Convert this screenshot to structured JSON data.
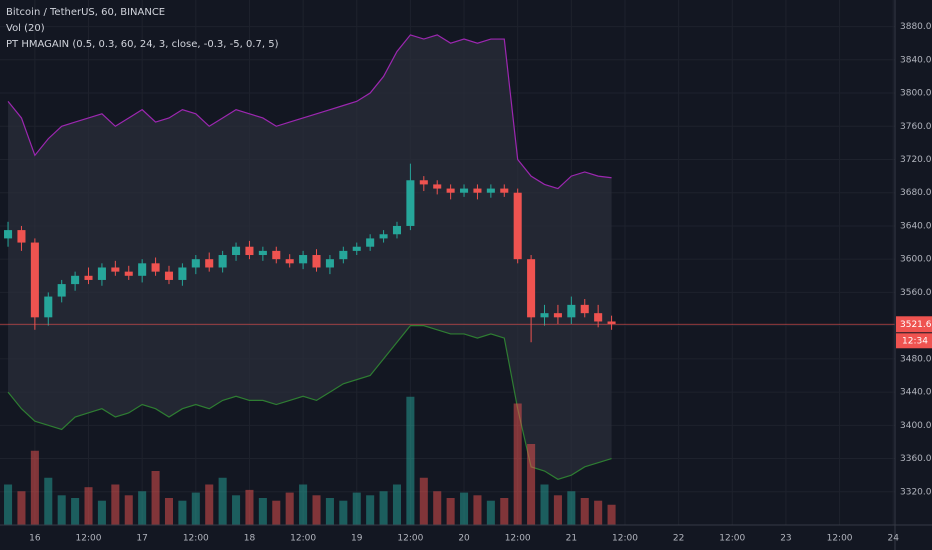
{
  "chart_data": {
    "type": "candlestick",
    "title": "Bitcoin / TetherUS, 60, BINANCE",
    "indicators": [
      "Vol (20)",
      "PT HMAGAIN (0.5, 0.3, 60, 24, 3, close, -0.3, -5, 0.7, 5)"
    ],
    "x": [
      -6,
      -3,
      0,
      3,
      6,
      9,
      12,
      15,
      18,
      21,
      24,
      27,
      30,
      33,
      36,
      39,
      42,
      45,
      48,
      51,
      54,
      57,
      60,
      63,
      66,
      69,
      72,
      75,
      78,
      81,
      84,
      87,
      90,
      93,
      96,
      99,
      102,
      105,
      108,
      111,
      114,
      117,
      120,
      123,
      126,
      129
    ],
    "open": [
      3625,
      3635,
      3620,
      3530,
      3555,
      3570,
      3580,
      3575,
      3590,
      3585,
      3580,
      3595,
      3585,
      3575,
      3590,
      3600,
      3590,
      3605,
      3615,
      3605,
      3610,
      3600,
      3595,
      3605,
      3590,
      3600,
      3610,
      3615,
      3625,
      3630,
      3640,
      3695,
      3690,
      3685,
      3680,
      3685,
      3680,
      3685,
      3680,
      3600,
      3530,
      3535,
      3530,
      3545,
      3535,
      3525
    ],
    "high": [
      3645,
      3640,
      3625,
      3560,
      3575,
      3585,
      3590,
      3595,
      3598,
      3592,
      3600,
      3602,
      3592,
      3595,
      3605,
      3608,
      3610,
      3620,
      3622,
      3615,
      3615,
      3606,
      3610,
      3612,
      3605,
      3615,
      3620,
      3630,
      3635,
      3645,
      3715,
      3700,
      3695,
      3690,
      3690,
      3690,
      3690,
      3690,
      3685,
      3605,
      3545,
      3545,
      3555,
      3552,
      3545,
      3532
    ],
    "low": [
      3615,
      3610,
      3515,
      3520,
      3548,
      3562,
      3570,
      3568,
      3580,
      3575,
      3572,
      3580,
      3570,
      3568,
      3582,
      3585,
      3584,
      3598,
      3600,
      3598,
      3595,
      3590,
      3588,
      3585,
      3582,
      3595,
      3605,
      3610,
      3620,
      3625,
      3635,
      3682,
      3678,
      3672,
      3675,
      3672,
      3674,
      3675,
      3595,
      3500,
      3520,
      3522,
      3522,
      3530,
      3518,
      3515
    ],
    "close": [
      3635,
      3620,
      3530,
      3555,
      3570,
      3580,
      3575,
      3590,
      3585,
      3580,
      3595,
      3585,
      3575,
      3590,
      3600,
      3590,
      3605,
      3615,
      3605,
      3610,
      3600,
      3595,
      3605,
      3590,
      3600,
      3610,
      3615,
      3625,
      3630,
      3640,
      3695,
      3690,
      3685,
      3680,
      3685,
      3680,
      3685,
      3680,
      3600,
      3530,
      3535,
      3530,
      3545,
      3535,
      3525,
      3522
    ],
    "volume": [
      30,
      25,
      55,
      35,
      22,
      20,
      28,
      18,
      30,
      22,
      25,
      40,
      20,
      18,
      24,
      30,
      35,
      22,
      26,
      20,
      18,
      24,
      30,
      22,
      20,
      18,
      24,
      22,
      25,
      30,
      95,
      35,
      25,
      20,
      24,
      22,
      18,
      20,
      90,
      60,
      30,
      22,
      25,
      20,
      18,
      15
    ],
    "upper_band": [
      3790,
      3770,
      3725,
      3745,
      3760,
      3765,
      3770,
      3775,
      3760,
      3770,
      3780,
      3765,
      3770,
      3780,
      3775,
      3760,
      3770,
      3780,
      3775,
      3770,
      3760,
      3765,
      3770,
      3775,
      3780,
      3785,
      3790,
      3800,
      3820,
      3850,
      3870,
      3865,
      3870,
      3860,
      3865,
      3860,
      3865,
      3865,
      3720,
      3700,
      3690,
      3685,
      3700,
      3705,
      3700,
      3698
    ],
    "lower_band": [
      3440,
      3420,
      3405,
      3400,
      3395,
      3410,
      3415,
      3420,
      3410,
      3415,
      3425,
      3420,
      3410,
      3420,
      3425,
      3420,
      3430,
      3435,
      3430,
      3430,
      3425,
      3430,
      3435,
      3430,
      3440,
      3450,
      3455,
      3460,
      3480,
      3500,
      3520,
      3520,
      3515,
      3510,
      3510,
      3505,
      3510,
      3505,
      3420,
      3350,
      3345,
      3335,
      3340,
      3350,
      3355,
      3360
    ],
    "up_color": "#26a69a",
    "down_color": "#ef5350",
    "upper_color": "#9c27b0",
    "lower_color": "#2e7d32",
    "last_price": 3521.63,
    "countdown": "12:34",
    "ylim": [
      3280,
      3912
    ],
    "yticks": [
      {
        "value": 3320,
        "label": "3320.00"
      },
      {
        "value": 3360,
        "label": "3360.00"
      },
      {
        "value": 3400,
        "label": "3400.00"
      },
      {
        "value": 3440,
        "label": "3440.00"
      },
      {
        "value": 3480,
        "label": "3480.00"
      },
      {
        "value": 3520,
        "label": "3520.00"
      },
      {
        "value": 3560,
        "label": "3560.00"
      },
      {
        "value": 3600,
        "label": "3600.00"
      },
      {
        "value": 3640,
        "label": "3640.00"
      },
      {
        "value": 3680,
        "label": "3680.00"
      },
      {
        "value": 3720,
        "label": "3720.00"
      },
      {
        "value": 3760,
        "label": "3760.00"
      },
      {
        "value": 3800,
        "label": "3800.00"
      },
      {
        "value": 3840,
        "label": "3840.00"
      },
      {
        "value": 3880,
        "label": "3880.00"
      }
    ],
    "xlim": [
      -7.8,
      192.4
    ],
    "xticks": [
      {
        "value": 0,
        "label": "16"
      },
      {
        "value": 12,
        "label": "12:00"
      },
      {
        "value": 24,
        "label": "17"
      },
      {
        "value": 36,
        "label": "12:00"
      },
      {
        "value": 48,
        "label": "18"
      },
      {
        "value": 60,
        "label": "12:00"
      },
      {
        "value": 72,
        "label": "19"
      },
      {
        "value": 84,
        "label": "12:00"
      },
      {
        "value": 96,
        "label": "20"
      },
      {
        "value": 108,
        "label": "12:00"
      },
      {
        "value": 120,
        "label": "21"
      },
      {
        "value": 132,
        "label": "12:00"
      },
      {
        "value": 144,
        "label": "22"
      },
      {
        "value": 156,
        "label": "12:00"
      },
      {
        "value": 168,
        "label": "23"
      },
      {
        "value": 180,
        "label": "12:00"
      },
      {
        "value": 192,
        "label": "24"
      }
    ],
    "volume_ylim": [
      0,
      100
    ]
  }
}
